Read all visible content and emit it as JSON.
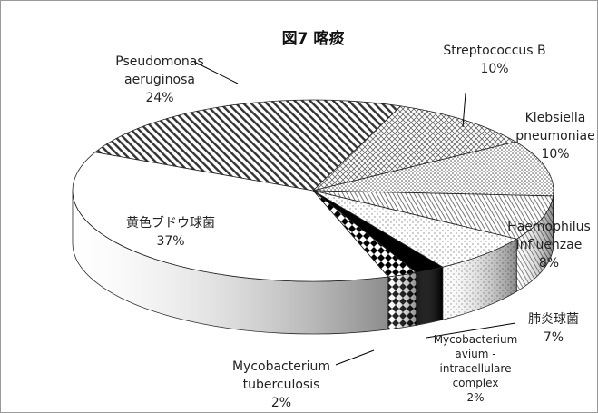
{
  "chart_data": {
    "type": "pie3d",
    "title": "図7 喀痰",
    "categories": [
      "Pseudomonas aeruginosa",
      "Streptococcus B",
      "Klebsiella pneumoniae",
      "Haemophilus Influenzae",
      "肺炎球菌",
      "Mycobacterium avium -intracellulare complex",
      "Mycobacterium tuberculosis",
      "黄色ブドウ球菌"
    ],
    "values": [
      24,
      10,
      10,
      8,
      7,
      2,
      2,
      37
    ],
    "value_labels": [
      "24%",
      "10%",
      "10%",
      "8%",
      "7%",
      "2%",
      "2%",
      "37%"
    ]
  }
}
